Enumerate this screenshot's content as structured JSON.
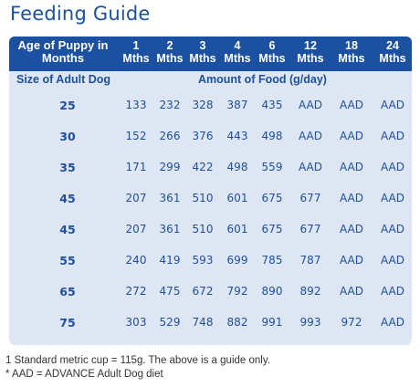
{
  "title": "Feeding Guide",
  "table": {
    "header_first": [
      "Age of Puppy in",
      "Months"
    ],
    "columns": [
      [
        "1",
        "Mths"
      ],
      [
        "2",
        "Mths"
      ],
      [
        "3",
        "Mths"
      ],
      [
        "4",
        "Mths"
      ],
      [
        "6",
        "Mths"
      ],
      [
        "12",
        "Mths"
      ],
      [
        "18",
        "Mths"
      ],
      [
        "24",
        "Mths"
      ]
    ],
    "size_label": "Size of Adult Dog",
    "amount_label": "Amount of Food (g/day)",
    "rows": [
      {
        "size": "25",
        "values": [
          "133",
          "232",
          "328",
          "387",
          "435",
          "AAD",
          "AAD",
          "AAD"
        ]
      },
      {
        "size": "30",
        "values": [
          "152",
          "266",
          "376",
          "443",
          "498",
          "AAD",
          "AAD",
          "AAD"
        ]
      },
      {
        "size": "35",
        "values": [
          "171",
          "299",
          "422",
          "498",
          "559",
          "AAD",
          "AAD",
          "AAD"
        ]
      },
      {
        "size": "45",
        "values": [
          "207",
          "361",
          "510",
          "601",
          "675",
          "677",
          "AAD",
          "AAD"
        ]
      },
      {
        "size": "45",
        "values": [
          "207",
          "361",
          "510",
          "601",
          "675",
          "677",
          "AAD",
          "AAD"
        ]
      },
      {
        "size": "55",
        "values": [
          "240",
          "419",
          "593",
          "699",
          "785",
          "787",
          "AAD",
          "AAD"
        ]
      },
      {
        "size": "65",
        "values": [
          "272",
          "475",
          "672",
          "792",
          "890",
          "892",
          "AAD",
          "AAD"
        ]
      },
      {
        "size": "75",
        "values": [
          "303",
          "529",
          "748",
          "882",
          "991",
          "993",
          "972",
          "AAD"
        ]
      }
    ]
  },
  "footnotes": [
    "1 Standard metric cup = 115g. The above is a guide only.",
    "* AAD = ADVANCE Adult Dog diet"
  ],
  "colors": {
    "accent": "#1c50a0",
    "table_bg": "#dfe6f3",
    "footnote": "#333333"
  }
}
